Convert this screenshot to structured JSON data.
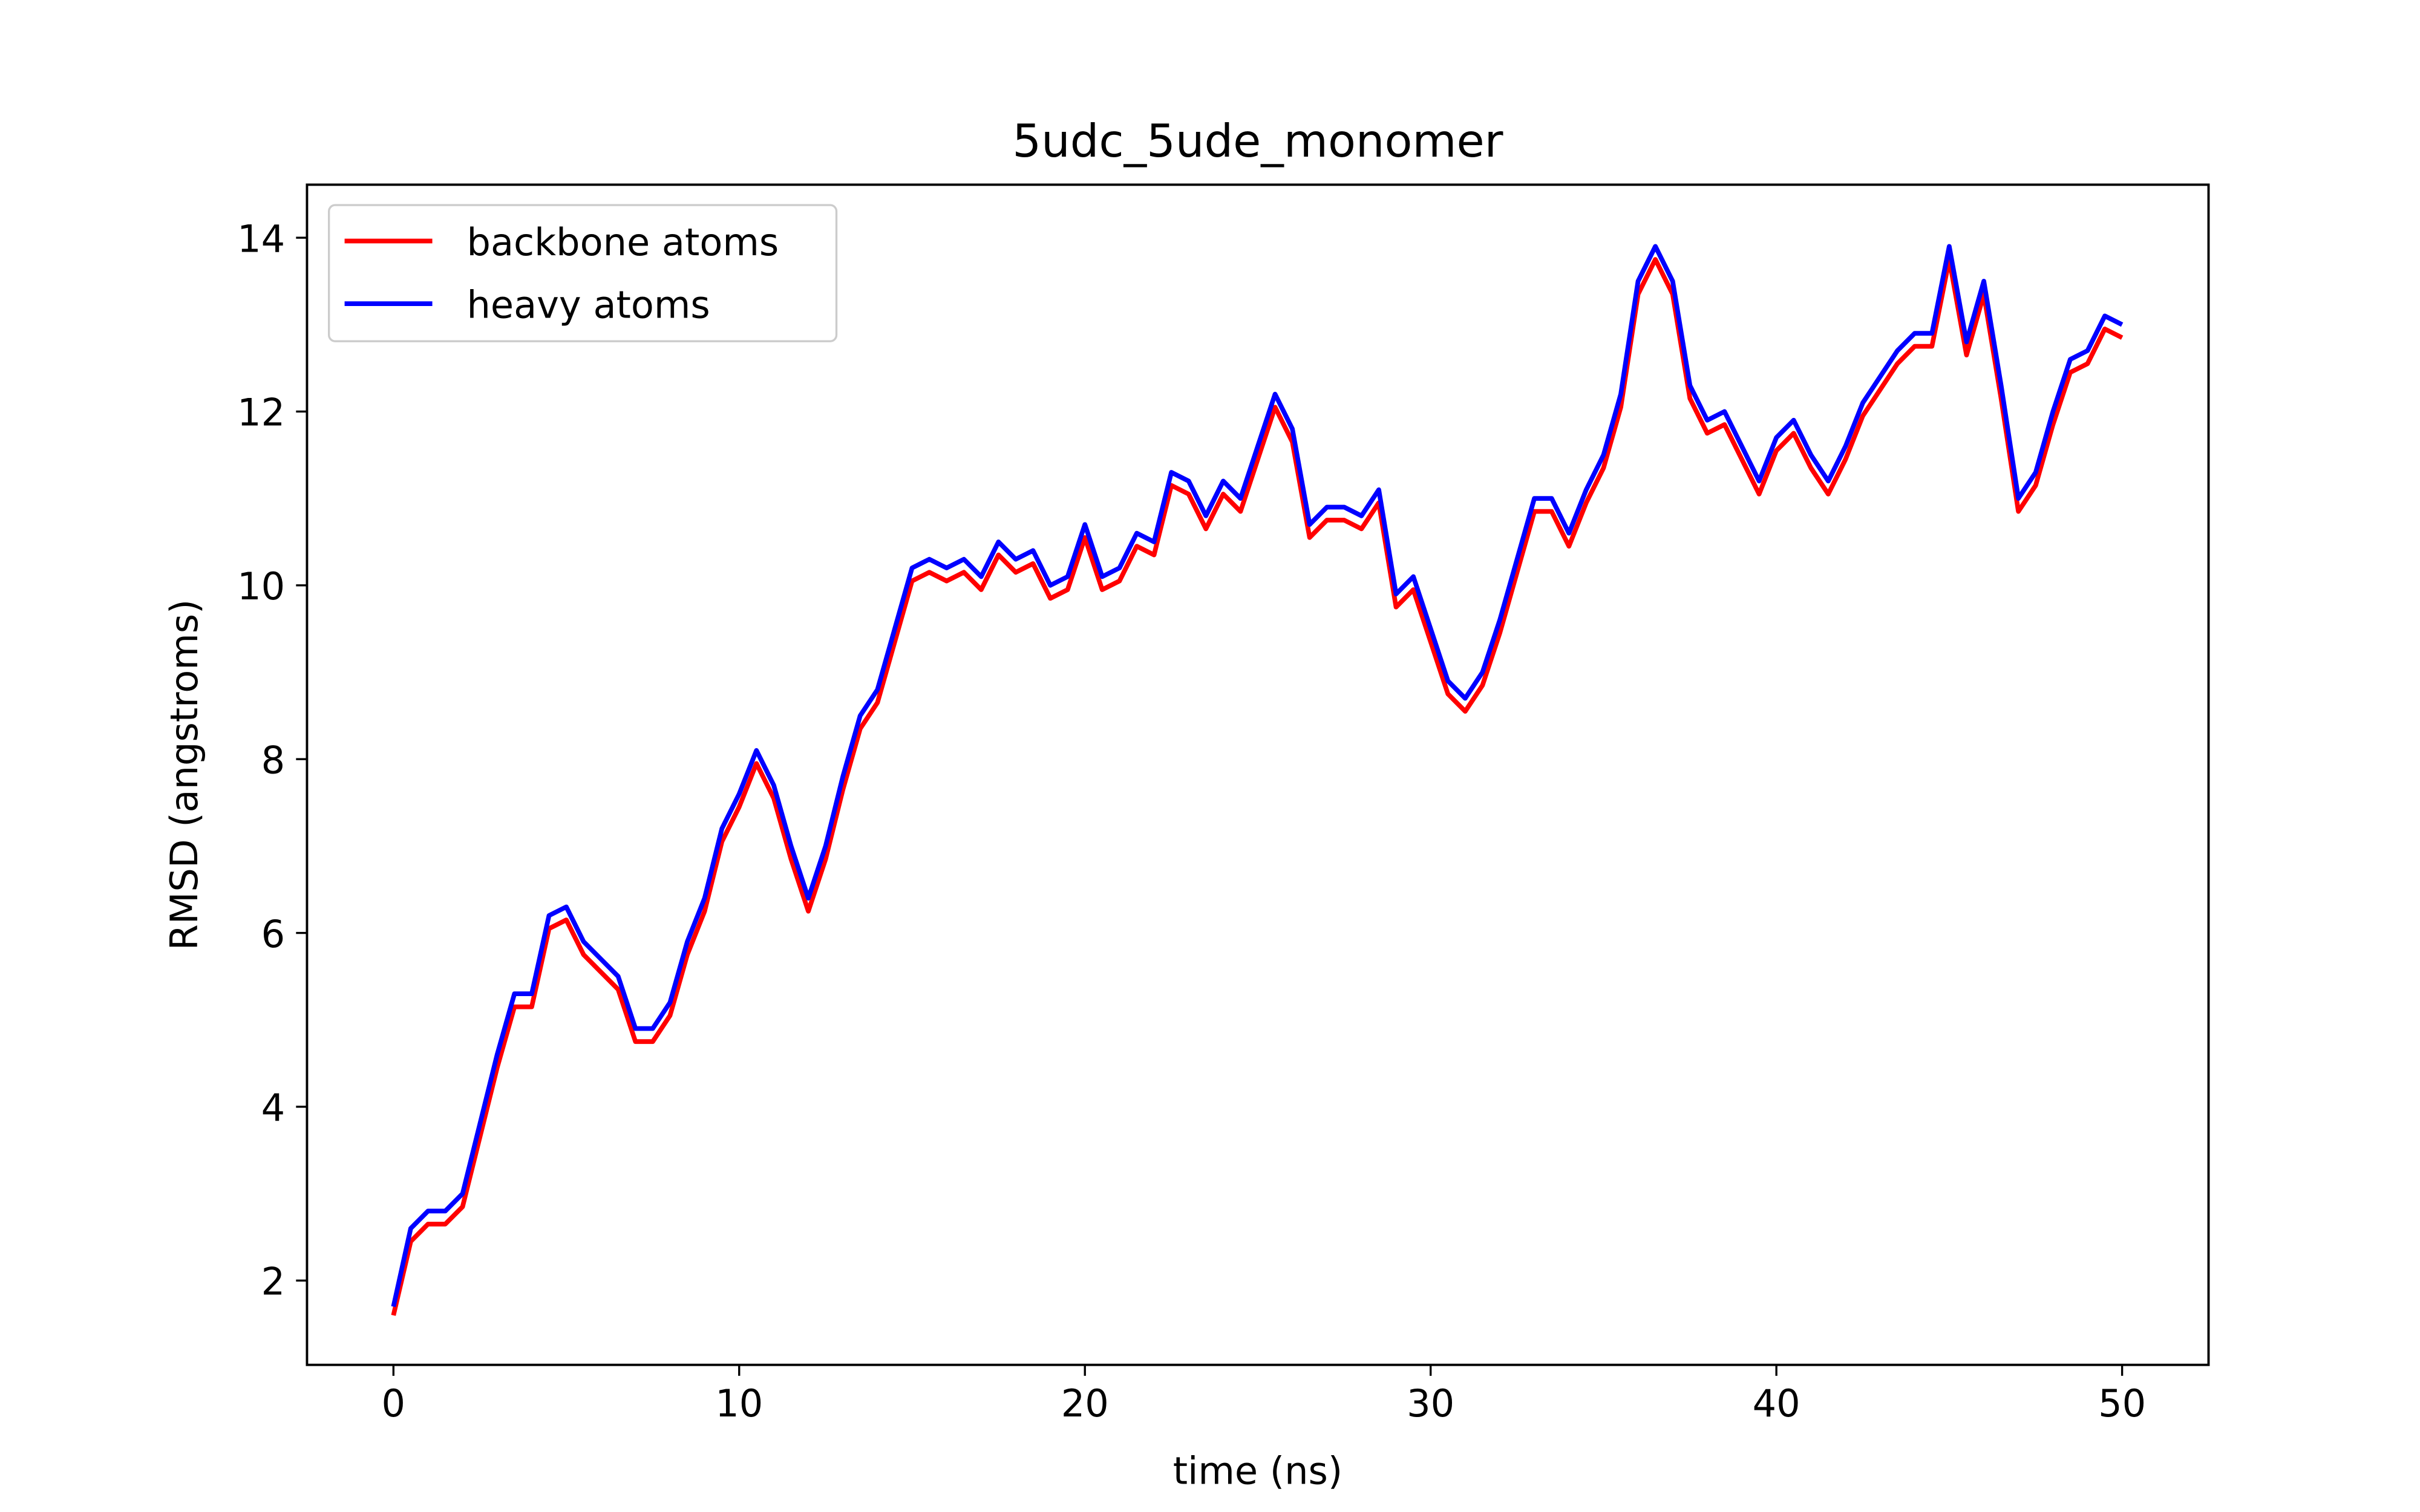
{
  "chart_data": {
    "type": "line",
    "title": "5udc_5ude_monomer",
    "xlabel": "time (ns)",
    "ylabel": "RMSD (angstroms)",
    "x": [
      0,
      0.5,
      1,
      1.5,
      2,
      2.5,
      3,
      3.5,
      4,
      4.5,
      5,
      5.5,
      6,
      6.5,
      7,
      7.5,
      8,
      8.5,
      9,
      9.5,
      10,
      10.5,
      11,
      11.5,
      12,
      12.5,
      13,
      13.5,
      14,
      14.5,
      15,
      15.5,
      16,
      16.5,
      17,
      17.5,
      18,
      18.5,
      19,
      19.5,
      20,
      20.5,
      21,
      21.5,
      22,
      22.5,
      23,
      23.5,
      24,
      24.5,
      25,
      25.5,
      26,
      26.5,
      27,
      27.5,
      28,
      28.5,
      29,
      29.5,
      30,
      30.5,
      31,
      31.5,
      32,
      32.5,
      33,
      33.5,
      34,
      34.5,
      35,
      35.5,
      36,
      36.5,
      37,
      37.5,
      38,
      38.5,
      39,
      39.5,
      40,
      40.5,
      41,
      41.5,
      42,
      42.5,
      43,
      43.5,
      44,
      44.5,
      45,
      45.5,
      46,
      46.5,
      47,
      47.5,
      48,
      48.5,
      49,
      49.5,
      50
    ],
    "series": [
      {
        "name": "backbone atoms",
        "color": "#ff0000",
        "values": [
          1.6,
          2.45,
          2.65,
          2.65,
          2.85,
          3.65,
          4.45,
          5.15,
          5.15,
          6.05,
          6.15,
          5.75,
          5.55,
          5.35,
          4.75,
          4.75,
          5.05,
          5.75,
          6.25,
          7.05,
          7.45,
          7.95,
          7.55,
          6.85,
          6.25,
          6.85,
          7.65,
          8.35,
          8.65,
          9.35,
          10.05,
          10.15,
          10.05,
          10.15,
          9.95,
          10.35,
          10.15,
          10.25,
          9.85,
          9.95,
          10.55,
          9.95,
          10.05,
          10.45,
          10.35,
          11.15,
          11.05,
          10.65,
          11.05,
          10.85,
          11.45,
          12.05,
          11.65,
          10.55,
          10.75,
          10.75,
          10.65,
          10.95,
          9.75,
          9.95,
          9.35,
          8.75,
          8.55,
          8.85,
          9.45,
          10.15,
          10.85,
          10.85,
          10.45,
          10.95,
          11.35,
          12.05,
          13.35,
          13.75,
          13.35,
          12.15,
          11.75,
          11.85,
          11.45,
          11.05,
          11.55,
          11.75,
          11.35,
          11.05,
          11.45,
          11.95,
          12.25,
          12.55,
          12.75,
          12.75,
          13.75,
          12.65,
          13.35,
          12.15,
          10.85,
          11.15,
          11.85,
          12.45,
          12.55,
          12.95,
          12.85
        ]
      },
      {
        "name": "heavy atoms",
        "color": "#0000ff",
        "values": [
          1.7,
          2.6,
          2.8,
          2.8,
          3.0,
          3.8,
          4.6,
          5.3,
          5.3,
          6.2,
          6.3,
          5.9,
          5.7,
          5.5,
          4.9,
          4.9,
          5.2,
          5.9,
          6.4,
          7.2,
          7.6,
          8.1,
          7.7,
          7.0,
          6.4,
          7.0,
          7.8,
          8.5,
          8.8,
          9.5,
          10.2,
          10.3,
          10.2,
          10.3,
          10.1,
          10.5,
          10.3,
          10.4,
          10.0,
          10.1,
          10.7,
          10.1,
          10.2,
          10.6,
          10.5,
          11.3,
          11.2,
          10.8,
          11.2,
          11.0,
          11.6,
          12.2,
          11.8,
          10.7,
          10.9,
          10.9,
          10.8,
          11.1,
          9.9,
          10.1,
          9.5,
          8.9,
          8.7,
          9.0,
          9.6,
          10.3,
          11.0,
          11.0,
          10.6,
          11.1,
          11.5,
          12.2,
          13.5,
          13.9,
          13.5,
          12.3,
          11.9,
          12.0,
          11.6,
          11.2,
          11.7,
          11.9,
          11.5,
          11.2,
          11.6,
          12.1,
          12.4,
          12.7,
          12.9,
          12.9,
          13.9,
          12.8,
          13.5,
          12.3,
          11.0,
          11.3,
          12.0,
          12.6,
          12.7,
          13.1,
          13.0
        ]
      }
    ],
    "xlim": [
      -2.5,
      52.5
    ],
    "ylim": [
      1.03,
      14.61
    ],
    "xticks": [
      0,
      10,
      20,
      30,
      40,
      50
    ],
    "yticks": [
      2,
      4,
      6,
      8,
      10,
      12,
      14
    ],
    "grid": false,
    "legend": "upper left"
  }
}
